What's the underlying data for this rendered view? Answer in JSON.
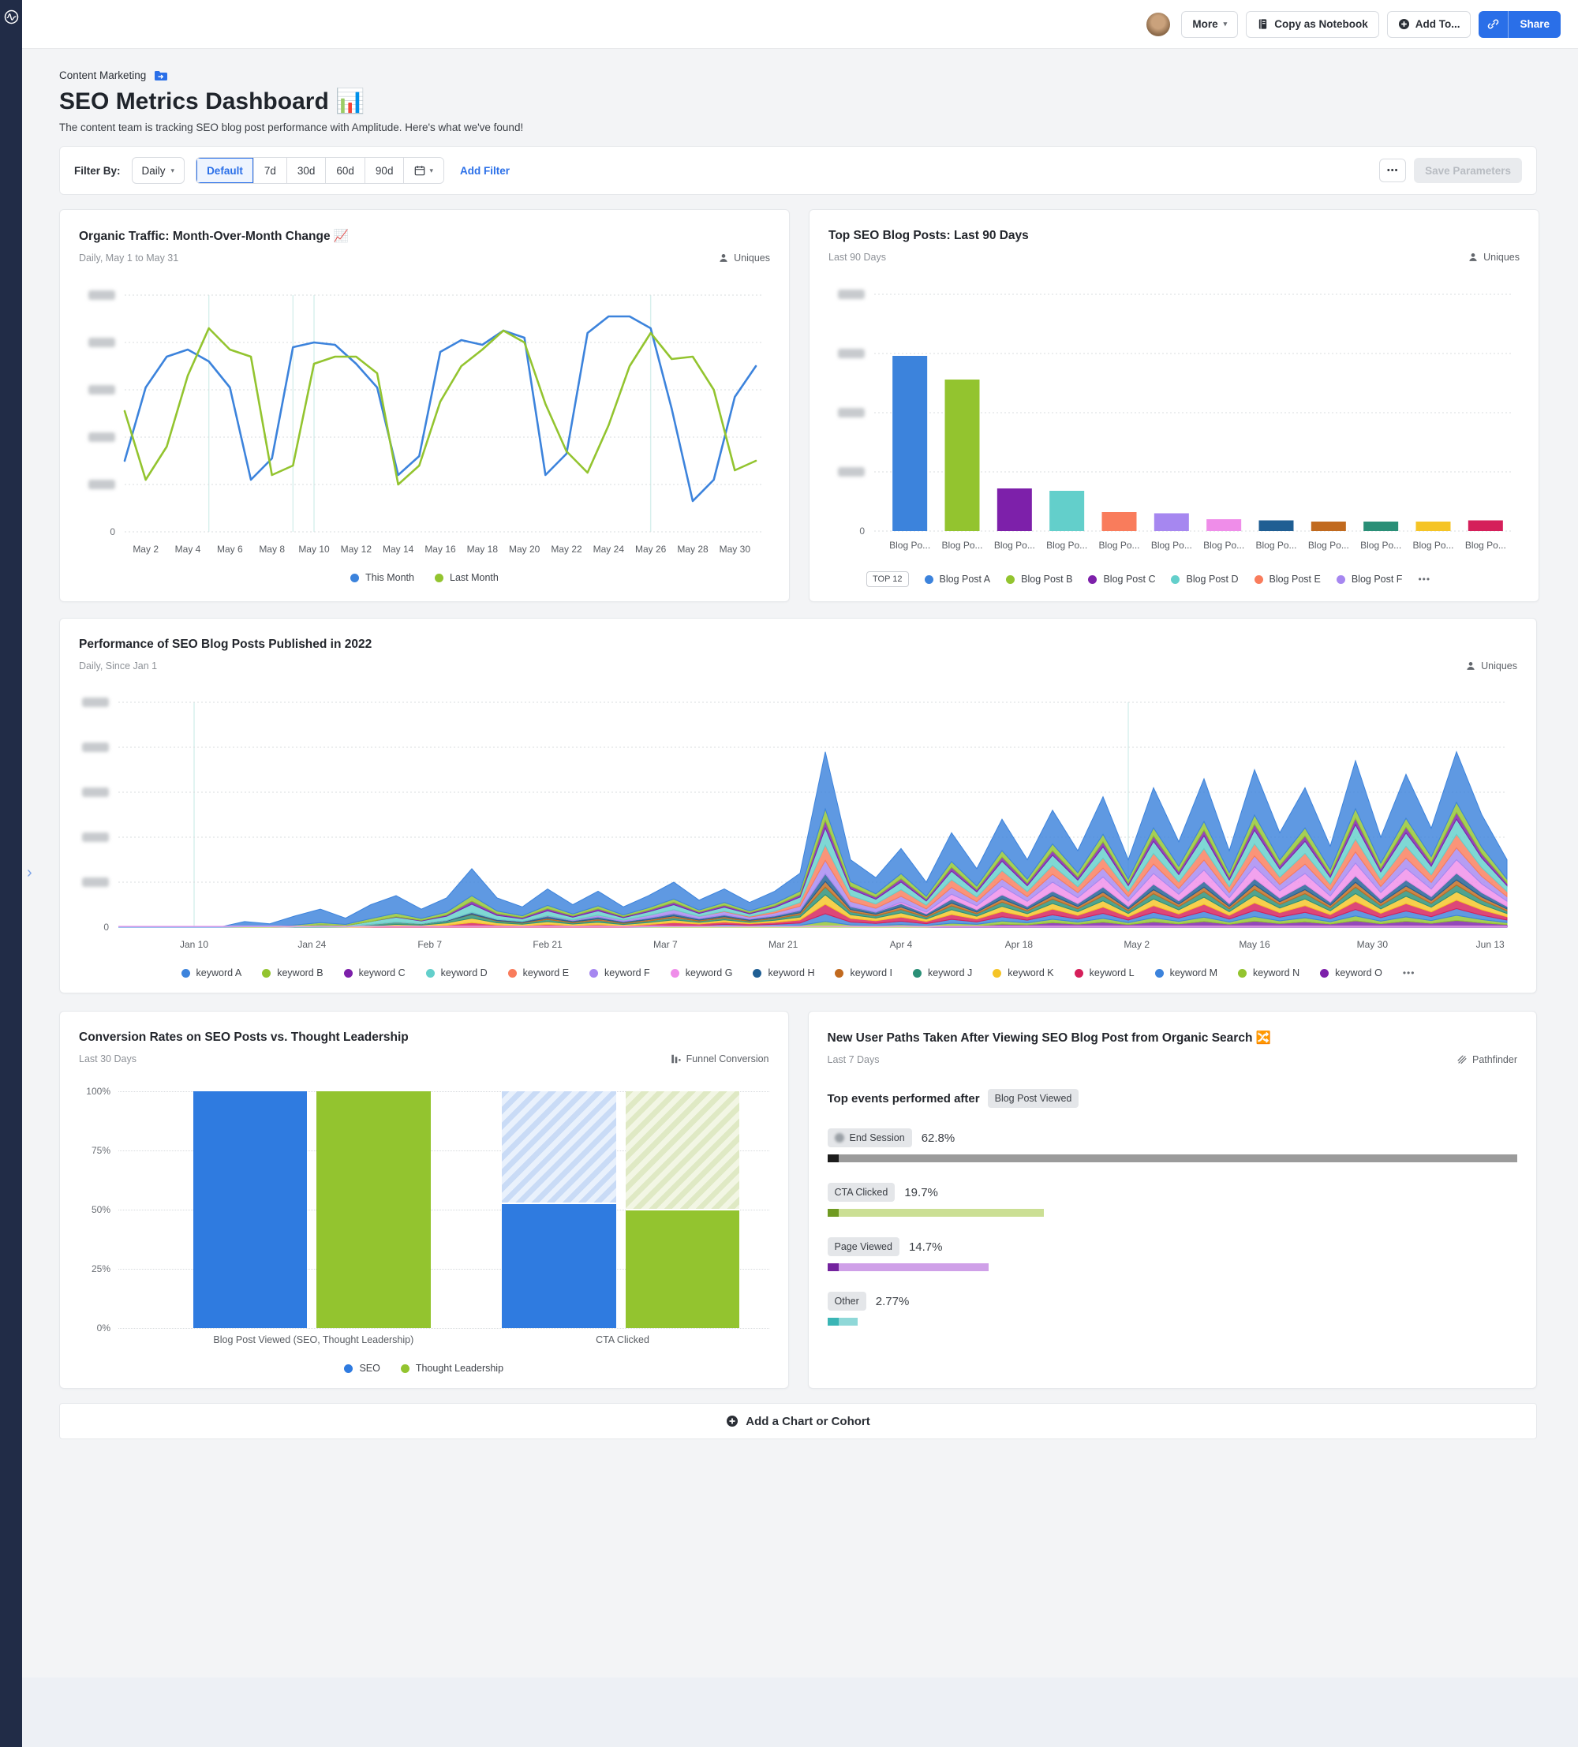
{
  "theme": {
    "accent": "#2a6fe8",
    "sidebar": "#212c47",
    "palette": [
      "#3c83dc",
      "#93c42f",
      "#7d20aa",
      "#63cfcb",
      "#f97c5c",
      "#a687f0",
      "#ef8de9",
      "#1f5e93",
      "#c16a1f",
      "#2a8f77",
      "#f5c426",
      "#d51f5a"
    ]
  },
  "header": {
    "more": "More",
    "copy_notebook": "Copy as Notebook",
    "add_to": "Add To...",
    "share": "Share"
  },
  "breadcrumb": {
    "label": "Content Marketing"
  },
  "page": {
    "title": "SEO Metrics Dashboard 📊",
    "subtitle": "The content team is tracking SEO blog post performance with Amplitude. Here's what we've found!"
  },
  "filters": {
    "label": "Filter By:",
    "interval": "Daily",
    "segments": [
      "Default",
      "7d",
      "30d",
      "60d",
      "90d"
    ],
    "add_filter": "Add Filter",
    "more": "•••",
    "save": "Save Parameters"
  },
  "footer": {
    "add_label": "Add a Chart or Cohort"
  },
  "chart_data": [
    {
      "type": "line",
      "title": "Organic Traffic: Month-Over-Month Change 📈",
      "subtitle": "Daily, May 1 to May 31",
      "metric": "Uniques",
      "ylim": [
        0,
        100
      ],
      "y_ticks_redacted": 5,
      "x_labels": [
        "May 2",
        "May 4",
        "May 6",
        "May 8",
        "May 10",
        "May 12",
        "May 14",
        "May 16",
        "May 18",
        "May 20",
        "May 22",
        "May 24",
        "May 26",
        "May 28",
        "May 30"
      ],
      "annotation_days": [
        4,
        8,
        9,
        25
      ],
      "series": [
        {
          "name": "This Month",
          "color": "#3c83dc",
          "values": [
            30,
            61,
            74,
            77,
            72,
            61,
            22,
            31,
            78,
            80,
            79,
            71,
            61,
            24,
            32,
            76,
            81,
            79,
            85,
            82,
            24,
            33,
            84,
            91,
            91,
            86,
            52,
            13,
            22,
            57,
            70
          ]
        },
        {
          "name": "Last Month",
          "color": "#93c42f",
          "values": [
            51,
            22,
            36,
            66,
            86,
            77,
            74,
            24,
            28,
            71,
            74,
            74,
            67,
            20,
            28,
            55,
            70,
            77,
            85,
            80,
            54,
            34,
            25,
            45,
            70,
            84,
            73,
            74,
            60,
            26,
            30
          ]
        }
      ]
    },
    {
      "type": "bar",
      "title": "Top SEO Blog Posts: Last 90 Days",
      "subtitle": "Last 90 Days",
      "metric": "Uniques",
      "ylim": [
        0,
        100
      ],
      "y_ticks_redacted": 4,
      "x_label_truncated": "Blog Po...",
      "values": [
        74,
        64,
        18,
        17,
        8,
        7.5,
        5,
        4.5,
        4,
        4,
        4,
        4.5
      ],
      "colors": [
        "#3c83dc",
        "#93c42f",
        "#7d20aa",
        "#63cfcb",
        "#f97c5c",
        "#a687f0",
        "#ef8de9",
        "#1f5e93",
        "#c16a1f",
        "#2a8f77",
        "#f5c426",
        "#d51f5a"
      ],
      "legend": {
        "badge": "TOP 12",
        "entries": [
          {
            "label": "Blog Post A",
            "color": "#3c83dc"
          },
          {
            "label": "Blog Post B",
            "color": "#93c42f"
          },
          {
            "label": "Blog Post C",
            "color": "#7d20aa"
          },
          {
            "label": "Blog Post D",
            "color": "#63cfcb"
          },
          {
            "label": "Blog Post E",
            "color": "#f97c5c"
          },
          {
            "label": "Blog Post F",
            "color": "#a687f0"
          }
        ],
        "overflow": "•••"
      }
    },
    {
      "type": "area",
      "title": "Performance of SEO Blog Posts Published in 2022",
      "subtitle": "Daily, Since Jan 1",
      "metric": "Uniques",
      "ylim": [
        0,
        100
      ],
      "y_ticks_redacted": 5,
      "x_tick_days": [
        9,
        23,
        37,
        51,
        65,
        79,
        93,
        107,
        121,
        135,
        149,
        163
      ],
      "x_tick_labels": [
        "Jan 10",
        "Jan 24",
        "Feb 7",
        "Feb 21",
        "Mar 7",
        "Mar 21",
        "Apr 4",
        "Apr 18",
        "May 2",
        "May 16",
        "May 30",
        "Jun 13"
      ],
      "annotation_days": [
        9,
        120
      ],
      "day_span": 165,
      "sample_days": [
        0,
        3,
        6,
        9,
        12,
        15,
        18,
        21,
        24,
        27,
        30,
        33,
        36,
        39,
        42,
        45,
        48,
        51,
        54,
        57,
        60,
        63,
        66,
        69,
        72,
        75,
        78,
        81,
        84,
        87,
        90,
        93,
        96,
        99,
        102,
        105,
        108,
        111,
        114,
        117,
        120,
        123,
        126,
        129,
        132,
        135,
        138,
        141,
        144,
        147,
        150,
        153,
        156,
        159,
        162,
        165
      ],
      "totals_pct": [
        0.3,
        0.4,
        0.4,
        0.5,
        0.8,
        2.5,
        1.5,
        5,
        8,
        4,
        10,
        14,
        8,
        13,
        26,
        13,
        9,
        17,
        10,
        16,
        9,
        14,
        20,
        12,
        17,
        11,
        16,
        24,
        78,
        30,
        22,
        35,
        20,
        42,
        26,
        48,
        30,
        52,
        34,
        58,
        30,
        62,
        38,
        66,
        34,
        70,
        42,
        62,
        36,
        74,
        40,
        68,
        44,
        78,
        50,
        30
      ],
      "series": [
        {
          "name": "keyword A",
          "color": "#3c83dc",
          "weight": 30,
          "start": 12
        },
        {
          "name": "keyword B",
          "color": "#93c42f",
          "weight": 6,
          "start": 14
        },
        {
          "name": "keyword C",
          "color": "#7d20aa",
          "weight": 4,
          "start": 30
        },
        {
          "name": "keyword D",
          "color": "#63cfcb",
          "weight": 9,
          "start": 20
        },
        {
          "name": "keyword E",
          "color": "#f97c5c",
          "weight": 8,
          "start": 70
        },
        {
          "name": "keyword F",
          "color": "#a687f0",
          "weight": 7,
          "start": 50
        },
        {
          "name": "keyword G",
          "color": "#ef8de9",
          "weight": 8,
          "start": 90
        },
        {
          "name": "keyword H",
          "color": "#1f5e93",
          "weight": 4,
          "start": 35
        },
        {
          "name": "keyword I",
          "color": "#c16a1f",
          "weight": 3,
          "start": 40
        },
        {
          "name": "keyword J",
          "color": "#2a8f77",
          "weight": 4,
          "start": 18
        },
        {
          "name": "keyword K",
          "color": "#f5c426",
          "weight": 5,
          "start": 25
        },
        {
          "name": "keyword L",
          "color": "#d51f5a",
          "weight": 5,
          "start": 28
        },
        {
          "name": "keyword M",
          "color": "#3c83dc",
          "weight": 4,
          "start": 60
        },
        {
          "name": "keyword N",
          "color": "#93c42f",
          "weight": 3,
          "start": 60
        },
        {
          "name": "keyword O",
          "color": "#7d20aa",
          "weight": 4,
          "start": 95
        }
      ],
      "legend_overflow": "•••"
    },
    {
      "type": "bar",
      "title": "Conversion Rates on SEO Posts vs. Thought Leadership",
      "subtitle": "Last 30 Days",
      "metric": "Funnel Conversion",
      "y_ticks": [
        "100%",
        "75%",
        "50%",
        "25%",
        "0%"
      ],
      "categories": [
        "Blog Post Viewed (SEO, Thought Leadership)",
        "CTA Clicked"
      ],
      "series": [
        {
          "name": "SEO",
          "color": "#2f7be0",
          "values": [
            100,
            53
          ]
        },
        {
          "name": "Thought Leadership",
          "color": "#93c42f",
          "values": [
            100,
            50.5
          ]
        }
      ]
    },
    {
      "type": "table",
      "title": "New User Paths Taken After Viewing SEO Blog Post from Organic Search 🔀",
      "subtitle": "Last 7 Days",
      "metric": "Pathfinder",
      "header_label": "Top events performed after",
      "header_badge": "Blog Post Viewed",
      "max_pct": 62.8,
      "rows": [
        {
          "label": "End Session",
          "value": "62.8%",
          "pct": 62.8,
          "icon": true,
          "bar_color": "#9b9b9b",
          "lead_color": "#1c1c1c"
        },
        {
          "label": "CTA Clicked",
          "value": "19.7%",
          "pct": 19.7,
          "icon": false,
          "bar_color": "#cbdf94",
          "lead_color": "#6f9a21"
        },
        {
          "label": "Page Viewed",
          "value": "14.7%",
          "pct": 14.7,
          "icon": false,
          "bar_color": "#cfa0e8",
          "lead_color": "#73239e"
        },
        {
          "label": "Other",
          "value": "2.77%",
          "pct": 2.77,
          "icon": false,
          "bar_color": "#8fd8d8",
          "lead_color": "#3ab5b5"
        }
      ]
    }
  ]
}
